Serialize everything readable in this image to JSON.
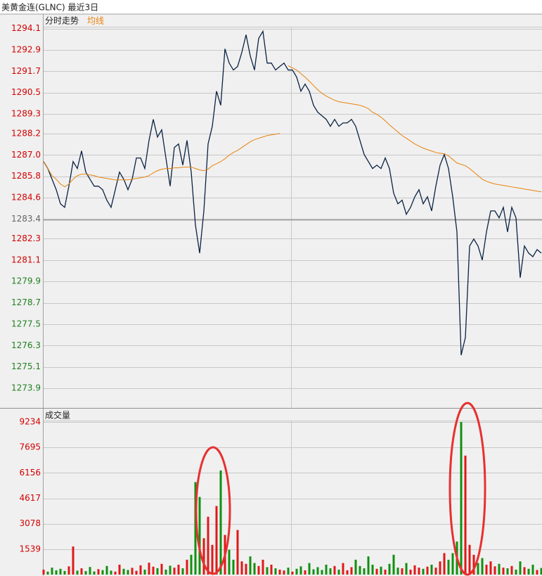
{
  "header": {
    "title": "美黄金连(GLNC) 最近3日"
  },
  "chart_data": [
    {
      "type": "line",
      "title": "分时走势",
      "ylim": [
        1272.8,
        1294.2
      ],
      "yticks": [
        1294.1,
        1292.9,
        1291.7,
        1290.5,
        1289.3,
        1288.2,
        {
          "value": 1287.0,
          "label": "1287.0"
        },
        1285.8,
        1284.6,
        1283.4,
        1282.3,
        1281.1,
        1279.9,
        1278.7,
        1277.5,
        1276.3,
        1275.1,
        1273.9
      ],
      "ytick_colors": [
        "#d40000",
        "#d40000",
        "#d40000",
        "#d40000",
        "#d40000",
        "#d40000",
        "#d40000",
        "#d40000",
        "#d40000",
        "#666666",
        "#d40000",
        "#d40000",
        "#208020",
        "#208020",
        "#208020",
        "#208020",
        "#208020",
        "#208020"
      ],
      "grid": true,
      "series": [
        {
          "color": "#0a2244",
          "values": [
            1286.63,
            1286.24,
            1285.64,
            1285.05,
            1284.26,
            1284.06,
            1285.25,
            1286.63,
            1286.24,
            1287.23,
            1286.04,
            1285.64,
            1285.25,
            1285.25,
            1285.05,
            1284.46,
            1284.06,
            1285.05,
            1286.04,
            1285.64,
            1285.05,
            1285.64,
            1286.83,
            1286.83,
            1286.24,
            1287.82,
            1289.0,
            1288.01,
            1288.41,
            1286.83,
            1285.25,
            1287.42,
            1287.62,
            1286.43,
            1287.82,
            1286.04,
            1283.07,
            1281.49,
            1283.86,
            1287.62,
            1288.61,
            1290.58,
            1289.79,
            1292.96,
            1292.16,
            1291.77,
            1291.97,
            1292.76,
            1293.75,
            1292.56,
            1291.77,
            1293.55,
            1293.94,
            1292.16,
            1292.16,
            1291.77,
            1291.97,
            1292.16,
            1291.77,
            1291.77,
            1291.37,
            1290.58,
            1290.98,
            1290.58,
            1289.79,
            1289.4,
            1289.2,
            1289.0,
            1288.61,
            1289.0,
            1288.61,
            1288.8,
            1288.8,
            1289.0,
            1288.61,
            1287.82,
            1287.03,
            1286.63,
            1286.24,
            1286.43,
            1286.24,
            1286.83,
            1286.24,
            1284.85,
            1284.26,
            1284.46,
            1283.67,
            1284.06,
            1284.65,
            1285.05,
            1284.26,
            1284.65,
            1283.86,
            1285.25,
            1286.43,
            1287.03,
            1286.24,
            1284.65,
            1282.68,
            1275.76,
            1276.75,
            1281.89,
            1282.28,
            1281.89,
            1281.1,
            1282.68,
            1283.86,
            1283.86,
            1283.47,
            1284.06,
            1282.68,
            1284.06,
            1283.47,
            1280.11,
            1281.89,
            1281.49,
            1281.29,
            1281.69,
            1281.49
          ]
        },
        {
          "name": "均线",
          "color": "#e8820c",
          "values": [
            1286.63,
            1286.24,
            1285.84,
            1285.64,
            1285.37,
            1285.21,
            1285.37,
            1285.64,
            1285.84,
            1285.92,
            1285.92,
            1285.88,
            1285.84,
            1285.76,
            1285.72,
            1285.68,
            1285.64,
            1285.6,
            1285.6,
            1285.6,
            1285.6,
            1285.64,
            1285.68,
            1285.72,
            1285.76,
            1285.84,
            1286.0,
            1286.12,
            1286.2,
            1286.24,
            1286.24,
            1286.28,
            1286.28,
            1286.32,
            1286.32,
            1286.32,
            1286.24,
            1286.16,
            1286.12,
            1286.2,
            1286.4,
            1286.51,
            1286.63,
            1286.79,
            1286.99,
            1287.14,
            1287.26,
            1287.42,
            1287.58,
            1287.74,
            1287.86,
            1287.94,
            1288.01,
            1288.09,
            1288.13,
            1288.17,
            1288.21,
            null,
            1292.01,
            1291.89,
            1291.77,
            1291.57,
            1291.37,
            1291.14,
            1290.9,
            1290.66,
            1290.46,
            1290.31,
            1290.19,
            1290.07,
            1289.99,
            1289.95,
            1289.91,
            1289.87,
            1289.83,
            1289.79,
            1289.71,
            1289.6,
            1289.4,
            1289.28,
            1289.12,
            1288.92,
            1288.69,
            1288.49,
            1288.29,
            1288.09,
            1287.94,
            1287.78,
            1287.62,
            1287.5,
            1287.38,
            1287.3,
            1287.22,
            1287.14,
            1287.1,
            1287.07,
            1286.95,
            1286.75,
            1286.55,
            1286.47,
            1286.4,
            1286.24,
            1286.04,
            1285.84,
            1285.64,
            1285.52,
            1285.44,
            1285.37,
            1285.33,
            1285.29,
            1285.25,
            1285.21,
            1285.17,
            1285.13,
            1285.09,
            1285.05,
            1285.01,
            1284.97,
            1284.93
          ]
        }
      ]
    },
    {
      "type": "bar",
      "title": "成交量",
      "ylim": [
        0,
        9320
      ],
      "yticks": [
        1539,
        3078,
        4617,
        6156,
        7695,
        9234
      ],
      "grid": true,
      "up_color": "#e01818",
      "down_color": "#109010",
      "values": [
        300,
        180,
        420,
        260,
        350,
        220,
        500,
        1700,
        240,
        380,
        210,
        460,
        190,
        330,
        270,
        520,
        240,
        180,
        600,
        350,
        280,
        410,
        230,
        560,
        300,
        720,
        480,
        390,
        650,
        300,
        540,
        420,
        600,
        380,
        900,
        1200,
        5600,
        4700,
        2200,
        3500,
        1800,
        4150,
        6300,
        2400,
        1500,
        900,
        2700,
        800,
        650,
        1100,
        700,
        520,
        900,
        450,
        600,
        380,
        300,
        250,
        420,
        180,
        350,
        500,
        260,
        700,
        320,
        450,
        280,
        600,
        380,
        520,
        300,
        700,
        260,
        450,
        900,
        520,
        380,
        1100,
        600,
        350,
        480,
        300,
        650,
        1200,
        420,
        380,
        700,
        300,
        560,
        420,
        350,
        480,
        600,
        420,
        800,
        1300,
        900,
        1300,
        2000,
        9234,
        7200,
        1800,
        1200,
        700,
        1000,
        600,
        800,
        500,
        650,
        420,
        380,
        520,
        300,
        800,
        450,
        350,
        600,
        280,
        400
      ]
    }
  ]
}
